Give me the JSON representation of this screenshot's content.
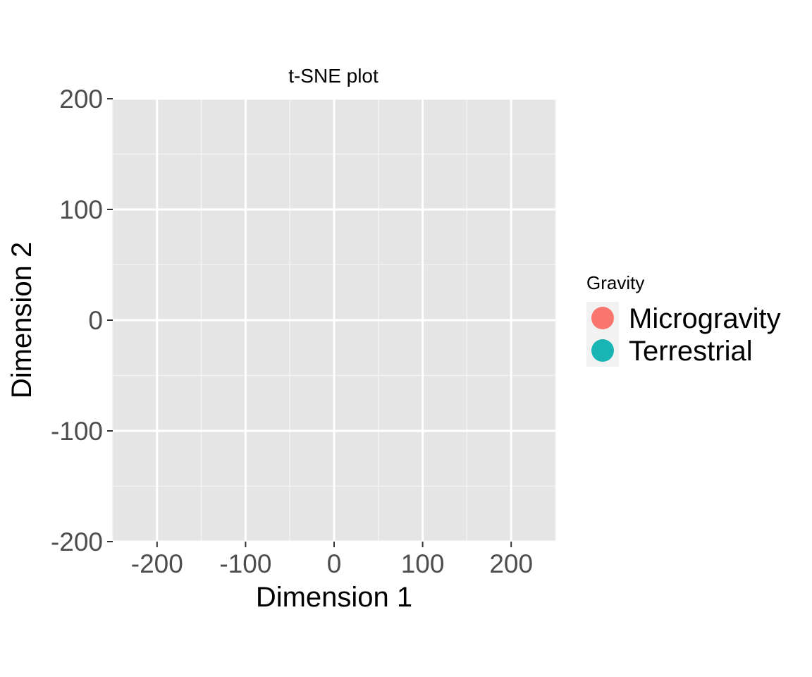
{
  "chart_data": {
    "type": "scatter",
    "title": "t-SNE plot",
    "xlabel": "Dimension 1",
    "ylabel": "Dimension 2",
    "xlim": [
      -250,
      250
    ],
    "ylim": [
      -200,
      200
    ],
    "x_ticks": [
      -200,
      -100,
      0,
      100,
      200
    ],
    "y_ticks": [
      -200,
      -100,
      0,
      100,
      200
    ],
    "grid": true,
    "panel_background": "#e5e5e5",
    "legend": {
      "title": "Gravity",
      "placement": "right",
      "entries": [
        {
          "label": "Microgravity",
          "color": "#f8766d"
        },
        {
          "label": "Terrestrial",
          "color": "#19b4b4"
        }
      ]
    },
    "series": [
      {
        "name": "Microgravity",
        "color": "#f8766d",
        "points": []
      },
      {
        "name": "Terrestrial",
        "color": "#19b4b4",
        "points": []
      }
    ]
  }
}
